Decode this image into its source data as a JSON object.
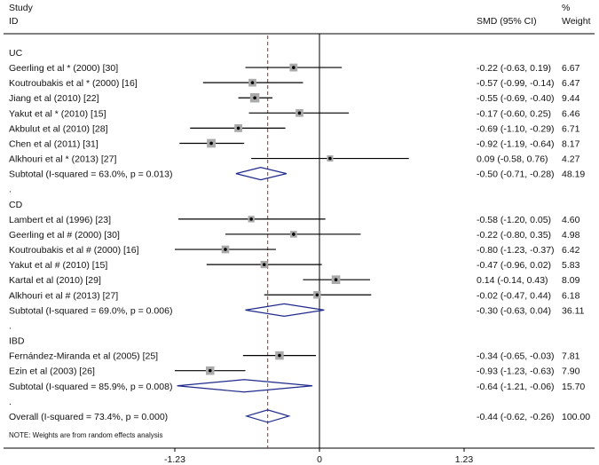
{
  "header": {
    "col1_line1": "Study",
    "col1_line2": "ID",
    "col2": "SMD (95% CI)",
    "col3_line1": "%",
    "col3_line2": "Weight"
  },
  "footnote": "NOTE: Weights are from random effects analysis",
  "colors": {
    "line": "#000000",
    "box": "#aaaaaa",
    "diamond": "#1f2a8c",
    "reference": "#b22222"
  },
  "chart_data": {
    "type": "forest",
    "xlim": [
      -1.5,
      1.5
    ],
    "xticks": [
      {
        "value": -1.23,
        "label": "-1.23"
      },
      {
        "value": 0,
        "label": "0"
      },
      {
        "value": 1.23,
        "label": "1.23"
      }
    ],
    "overall_effect_line": -0.44,
    "rows": [
      {
        "kind": "group",
        "label": "UC"
      },
      {
        "kind": "study",
        "label": "Geerling et al * (2000) [30]",
        "est": -0.22,
        "lo": -0.63,
        "hi": 0.19,
        "ci": "-0.22 (-0.63, 0.19)",
        "weight": "6.67"
      },
      {
        "kind": "study",
        "label": "Koutroubakis et al * (2000) [16]",
        "est": -0.57,
        "lo": -0.99,
        "hi": -0.14,
        "ci": "-0.57 (-0.99, -0.14)",
        "weight": "6.47"
      },
      {
        "kind": "study",
        "label": "Jiang et al (2010) [22]",
        "est": -0.55,
        "lo": -0.69,
        "hi": -0.4,
        "ci": "-0.55 (-0.69, -0.40)",
        "weight": "9.44"
      },
      {
        "kind": "study",
        "label": "Yakut et al * (2010) [15]",
        "est": -0.17,
        "lo": -0.6,
        "hi": 0.25,
        "ci": "-0.17 (-0.60, 0.25)",
        "weight": "6.46"
      },
      {
        "kind": "study",
        "label": "Akbulut et al (2010) [28]",
        "est": -0.69,
        "lo": -1.1,
        "hi": -0.29,
        "ci": "-0.69 (-1.10, -0.29)",
        "weight": "6.71"
      },
      {
        "kind": "study",
        "label": "Chen et al (2011) [31]",
        "est": -0.92,
        "lo": -1.19,
        "hi": -0.64,
        "ci": "-0.92 (-1.19, -0.64)",
        "weight": "8.17"
      },
      {
        "kind": "study",
        "label": "Alkhouri et al * (2013) [27]",
        "est": 0.09,
        "lo": -0.58,
        "hi": 0.76,
        "ci": "0.09 (-0.58, 0.76)",
        "weight": "4.27"
      },
      {
        "kind": "subtotal",
        "label": "Subtotal  (I-squared = 63.0%, p = 0.013)",
        "est": -0.5,
        "lo": -0.71,
        "hi": -0.28,
        "ci": "-0.50 (-0.71, -0.28)",
        "weight": "48.19"
      },
      {
        "kind": "spacer",
        "label": "."
      },
      {
        "kind": "group",
        "label": "CD"
      },
      {
        "kind": "study",
        "label": "Lambert et al (1996) [23]",
        "est": -0.58,
        "lo": -1.2,
        "hi": 0.05,
        "ci": "-0.58 (-1.20, 0.05)",
        "weight": "4.60"
      },
      {
        "kind": "study",
        "label": "Geerling et al # (2000) [30]",
        "est": -0.22,
        "lo": -0.8,
        "hi": 0.35,
        "ci": "-0.22 (-0.80, 0.35)",
        "weight": "4.98"
      },
      {
        "kind": "study",
        "label": "Koutroubakis et al # (2000) [16]",
        "est": -0.8,
        "lo": -1.23,
        "hi": -0.37,
        "ci": "-0.80 (-1.23, -0.37)",
        "weight": "6.42"
      },
      {
        "kind": "study",
        "label": "Yakut et al # (2010) [15]",
        "est": -0.47,
        "lo": -0.96,
        "hi": 0.02,
        "ci": "-0.47 (-0.96, 0.02)",
        "weight": "5.83"
      },
      {
        "kind": "study",
        "label": "Kartal et al (2010) [29]",
        "est": 0.14,
        "lo": -0.14,
        "hi": 0.43,
        "ci": "0.14 (-0.14, 0.43)",
        "weight": "8.09"
      },
      {
        "kind": "study",
        "label": "Alkhouri et al # (2013) [27]",
        "est": -0.02,
        "lo": -0.47,
        "hi": 0.44,
        "ci": "-0.02 (-0.47, 0.44)",
        "weight": "6.18"
      },
      {
        "kind": "subtotal",
        "label": "Subtotal  (I-squared = 69.0%, p = 0.006)",
        "est": -0.3,
        "lo": -0.63,
        "hi": 0.04,
        "ci": "-0.30 (-0.63, 0.04)",
        "weight": "36.11"
      },
      {
        "kind": "spacer",
        "label": "."
      },
      {
        "kind": "group",
        "label": "IBD"
      },
      {
        "kind": "study",
        "label": "Fernández-Miranda et al (2005) [25]",
        "est": -0.34,
        "lo": -0.65,
        "hi": -0.03,
        "ci": "-0.34 (-0.65, -0.03)",
        "weight": "7.81"
      },
      {
        "kind": "study",
        "label": "Ezin et al (2003) [26]",
        "est": -0.93,
        "lo": -1.23,
        "hi": -0.63,
        "ci": "-0.93 (-1.23, -0.63)",
        "weight": "7.90"
      },
      {
        "kind": "subtotal",
        "label": "Subtotal  (I-squared = 85.9%, p = 0.008)",
        "est": -0.64,
        "lo": -1.21,
        "hi": -0.06,
        "ci": "-0.64 (-1.21, -0.06)",
        "weight": "15.70"
      },
      {
        "kind": "spacer",
        "label": "."
      },
      {
        "kind": "overall",
        "label": "Overall  (I-squared = 73.4%, p = 0.000)",
        "est": -0.44,
        "lo": -0.62,
        "hi": -0.26,
        "ci": "-0.44 (-0.62, -0.26)",
        "weight": "100.00"
      }
    ]
  }
}
